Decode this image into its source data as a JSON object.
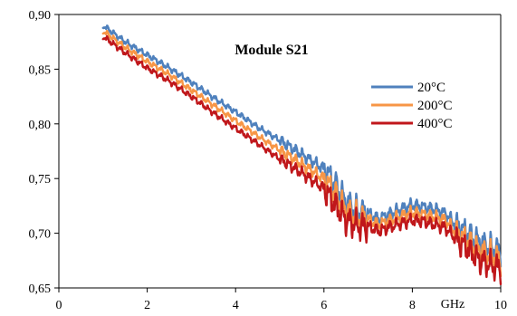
{
  "chart_data": {
    "type": "line",
    "title": "Module S21",
    "xlabel": "GHz",
    "ylabel": "",
    "xlim": [
      0,
      10
    ],
    "ylim": [
      0.65,
      0.9
    ],
    "x_ticks": [
      {
        "value": 0,
        "label": "0"
      },
      {
        "value": 2,
        "label": "2"
      },
      {
        "value": 4,
        "label": "4"
      },
      {
        "value": 6,
        "label": "6"
      },
      {
        "value": 8,
        "label": "8"
      },
      {
        "value": 10,
        "label": "10"
      }
    ],
    "y_ticks": [
      {
        "value": 0.65,
        "label": "0,65"
      },
      {
        "value": 0.7,
        "label": "0,70"
      },
      {
        "value": 0.75,
        "label": "0,75"
      },
      {
        "value": 0.8,
        "label": "0,80"
      },
      {
        "value": 0.85,
        "label": "0,85"
      },
      {
        "value": 0.9,
        "label": "0,90"
      }
    ],
    "grid": false,
    "legend_position": "top-right",
    "x": [
      1.0,
      1.5,
      2.0,
      2.5,
      3.0,
      3.5,
      4.0,
      4.5,
      5.0,
      5.5,
      6.0,
      6.25,
      6.5,
      6.75,
      7.0,
      7.25,
      7.5,
      8.0,
      8.25,
      8.5,
      8.75,
      9.0,
      9.25,
      9.5,
      9.75,
      10.0
    ],
    "series": [
      {
        "name": "20°C",
        "color": "#4f81bd",
        "values": [
          0.89,
          0.875,
          0.863,
          0.851,
          0.838,
          0.824,
          0.811,
          0.797,
          0.785,
          0.772,
          0.759,
          0.745,
          0.728,
          0.72,
          0.718,
          0.713,
          0.718,
          0.726,
          0.724,
          0.722,
          0.718,
          0.707,
          0.7,
          0.692,
          0.687,
          0.683
        ]
      },
      {
        "name": "200°C",
        "color": "#f79646",
        "values": [
          0.885,
          0.87,
          0.857,
          0.845,
          0.831,
          0.817,
          0.803,
          0.789,
          0.776,
          0.763,
          0.75,
          0.736,
          0.72,
          0.714,
          0.712,
          0.708,
          0.712,
          0.719,
          0.717,
          0.715,
          0.712,
          0.7,
          0.693,
          0.684,
          0.68,
          0.675
        ]
      },
      {
        "name": "400°C",
        "color": "#c0171b",
        "values": [
          0.88,
          0.865,
          0.851,
          0.839,
          0.825,
          0.81,
          0.796,
          0.782,
          0.768,
          0.755,
          0.741,
          0.726,
          0.712,
          0.707,
          0.706,
          0.702,
          0.706,
          0.712,
          0.711,
          0.708,
          0.705,
          0.694,
          0.686,
          0.676,
          0.671,
          0.668
        ]
      }
    ]
  }
}
